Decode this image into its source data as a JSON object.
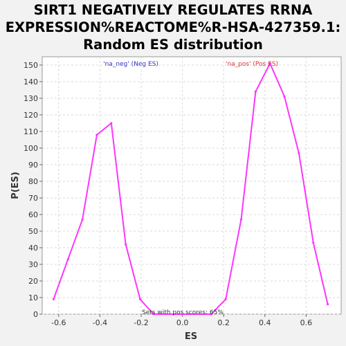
{
  "chart_data": {
    "type": "line",
    "title_lines": [
      "SIRT1 NEGATIVELY REGULATES RRNA",
      "EXPRESSION%REACTOME%R-HSA-427359.1:",
      "Random ES distribution"
    ],
    "xlabel": "ES",
    "ylabel": "P(ES)",
    "xlim": [
      -0.68,
      0.77
    ],
    "ylim": [
      0,
      155
    ],
    "x_ticks": [
      -0.6,
      -0.4,
      -0.2,
      0.0,
      0.2,
      0.4,
      0.6
    ],
    "x_tick_labels": [
      "-0.6",
      "-0.4",
      "-0.2",
      "0.0",
      "0.2",
      "0.4",
      "0.6"
    ],
    "y_ticks": [
      0,
      10,
      20,
      30,
      40,
      50,
      60,
      70,
      80,
      90,
      100,
      110,
      120,
      130,
      140,
      150
    ],
    "y_tick_labels": [
      "0",
      "10",
      "20",
      "30",
      "40",
      "50",
      "60",
      "70",
      "80",
      "90",
      "100",
      "110",
      "120",
      "130",
      "140",
      "150"
    ],
    "grid": true,
    "line_color": "#ff33ff",
    "series": [
      {
        "x": [
          -0.625,
          -0.555,
          -0.485,
          -0.415,
          -0.345,
          -0.275,
          -0.205,
          -0.14,
          0.14,
          0.21,
          0.285,
          0.355,
          0.425,
          0.495,
          0.565,
          0.635,
          0.705
        ],
        "values": [
          9,
          33,
          57,
          108,
          115,
          42,
          9,
          0,
          0,
          9,
          57,
          134,
          151,
          131,
          97,
          43,
          6
        ]
      }
    ],
    "legend": [
      {
        "label": "'na_neg' (Neg ES)",
        "color": "#3333cc"
      },
      {
        "label": "'na_pos' (Pos ES)",
        "color": "#e03030"
      }
    ],
    "annotation": "Sets with pos scores: 65%"
  }
}
